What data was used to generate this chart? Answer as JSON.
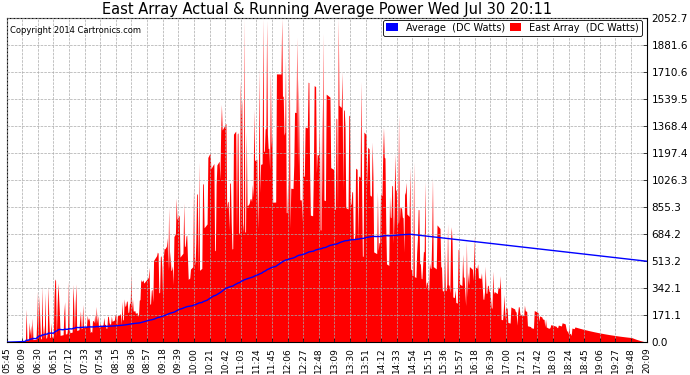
{
  "title": "East Array Actual & Running Average Power Wed Jul 30 20:11",
  "copyright": "Copyright 2014 Cartronics.com",
  "legend_avg": "Average  (DC Watts)",
  "legend_east": "East Array  (DC Watts)",
  "yticks": [
    0.0,
    171.1,
    342.1,
    513.2,
    684.2,
    855.3,
    1026.3,
    1197.4,
    1368.4,
    1539.5,
    1710.6,
    1881.6,
    2052.7
  ],
  "ymax": 2052.7,
  "bg_color": "#ffffff",
  "grid_color": "#aaaaaa",
  "fill_color": "#ff0000",
  "avg_line_color": "#0000ff",
  "title_color": "#000000",
  "copyright_color": "#000000",
  "xtick_labels": [
    "05:45",
    "06:09",
    "06:30",
    "06:51",
    "07:12",
    "07:33",
    "07:54",
    "08:15",
    "08:36",
    "08:57",
    "09:18",
    "09:39",
    "10:00",
    "10:21",
    "10:42",
    "11:03",
    "11:24",
    "11:45",
    "12:06",
    "12:27",
    "12:48",
    "13:09",
    "13:30",
    "13:51",
    "14:12",
    "14:33",
    "14:54",
    "15:15",
    "15:36",
    "15:57",
    "16:18",
    "16:39",
    "17:00",
    "17:21",
    "17:42",
    "18:03",
    "18:24",
    "18:45",
    "19:06",
    "19:27",
    "19:48",
    "20:09"
  ],
  "figsize": [
    6.9,
    3.75
  ],
  "dpi": 100
}
